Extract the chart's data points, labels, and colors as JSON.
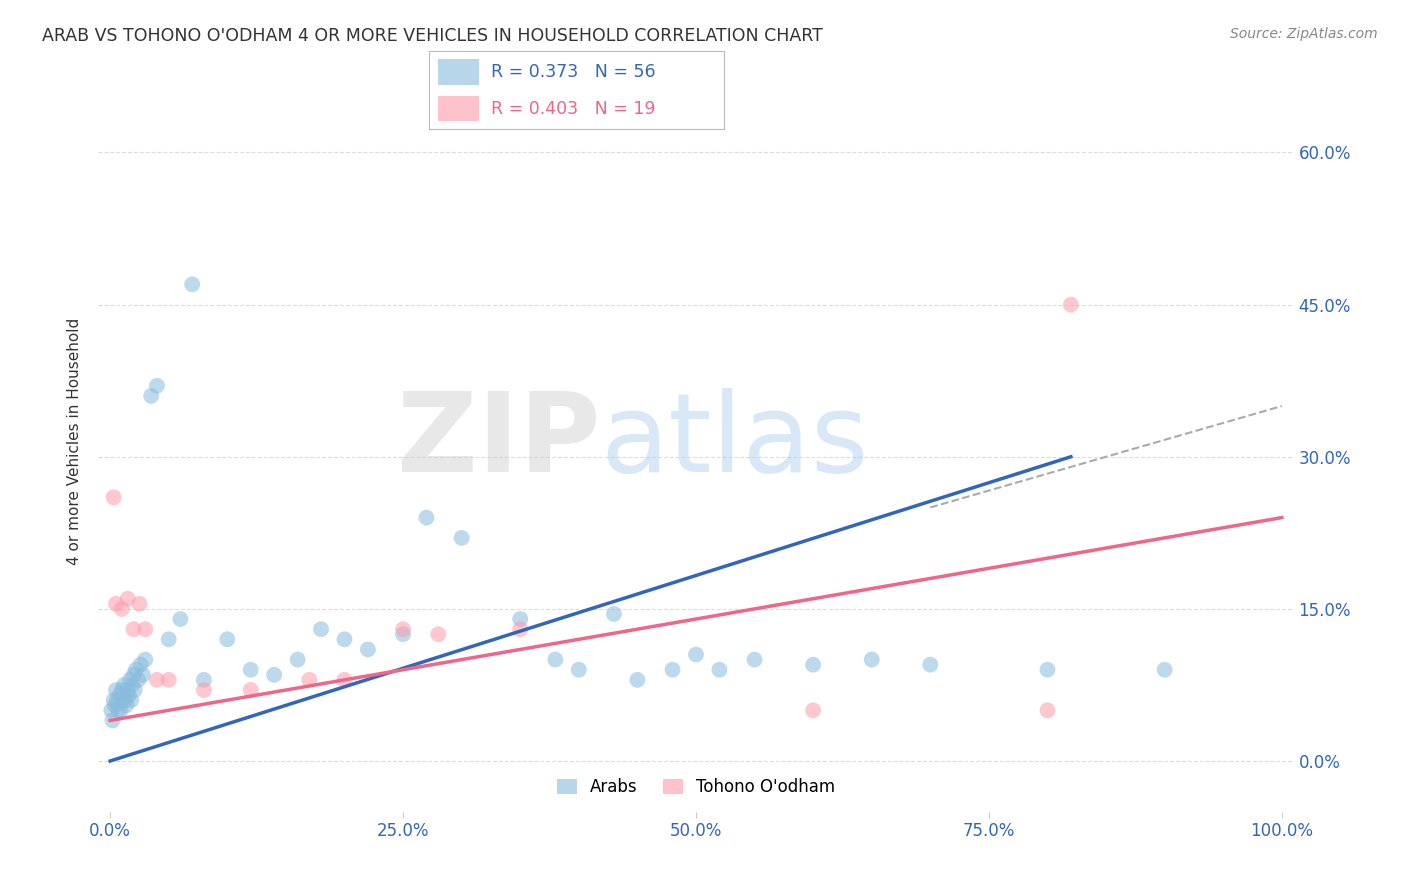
{
  "title": "ARAB VS TOHONO O'ODHAM 4 OR MORE VEHICLES IN HOUSEHOLD CORRELATION CHART",
  "source": "Source: ZipAtlas.com",
  "ylabel": "4 or more Vehicles in Household",
  "xlabel": "",
  "legend_arab": "Arabs",
  "legend_tohono": "Tohono O'odham",
  "R_arab": 0.373,
  "N_arab": 56,
  "R_tohono": 0.403,
  "N_tohono": 19,
  "arab_color": "#88BBDD",
  "tohono_color": "#FF99AA",
  "arab_line_color": "#3366BB",
  "tohono_line_color": "#EE6688",
  "background_color": "#FFFFFF",
  "grid_color": "#DDDDDD",
  "watermark_zip_color": "#CCCCCC",
  "watermark_atlas_color": "#AACCEE",
  "xlim_min": 0.0,
  "xlim_max": 100.0,
  "ylim_min": -5.0,
  "ylim_max": 68.0,
  "y_ticks": [
    0,
    15,
    30,
    45,
    60
  ],
  "x_ticks": [
    0,
    25,
    50,
    75,
    100
  ],
  "arab_x": [
    0.1,
    0.2,
    0.3,
    0.4,
    0.5,
    0.6,
    0.7,
    0.8,
    0.9,
    1.0,
    1.1,
    1.2,
    1.3,
    1.4,
    1.5,
    1.6,
    1.7,
    1.8,
    1.9,
    2.0,
    2.1,
    2.2,
    2.4,
    2.6,
    2.8,
    3.0,
    3.5,
    4.0,
    5.0,
    6.0,
    7.0,
    8.0,
    10.0,
    12.0,
    14.0,
    16.0,
    18.0,
    20.0,
    22.0,
    25.0,
    27.0,
    30.0,
    35.0,
    38.0,
    40.0,
    43.0,
    45.0,
    48.0,
    50.0,
    52.0,
    55.0,
    60.0,
    65.0,
    70.0,
    80.0,
    90.0
  ],
  "arab_y": [
    5.0,
    4.0,
    6.0,
    5.5,
    7.0,
    6.0,
    5.0,
    6.5,
    5.0,
    7.0,
    6.0,
    7.5,
    6.0,
    5.5,
    7.0,
    6.5,
    8.0,
    6.0,
    7.5,
    8.5,
    7.0,
    9.0,
    8.0,
    9.5,
    8.5,
    10.0,
    36.0,
    37.0,
    12.0,
    14.0,
    47.0,
    8.0,
    12.0,
    9.0,
    8.5,
    10.0,
    13.0,
    12.0,
    11.0,
    12.5,
    24.0,
    22.0,
    14.0,
    10.0,
    9.0,
    14.5,
    8.0,
    9.0,
    10.5,
    9.0,
    10.0,
    9.5,
    10.0,
    9.5,
    9.0,
    9.0
  ],
  "tohono_x": [
    0.3,
    0.5,
    1.0,
    1.5,
    2.0,
    2.5,
    3.0,
    4.0,
    5.0,
    8.0,
    12.0,
    17.0,
    20.0,
    25.0,
    28.0,
    35.0,
    60.0,
    80.0,
    82.0
  ],
  "tohono_y": [
    26.0,
    15.5,
    15.0,
    16.0,
    13.0,
    15.5,
    13.0,
    8.0,
    8.0,
    7.0,
    7.0,
    8.0,
    8.0,
    13.0,
    12.5,
    13.0,
    5.0,
    5.0,
    45.0
  ],
  "blue_line_x0": 0,
  "blue_line_y0": 0,
  "blue_line_x1": 82,
  "blue_line_y1": 30,
  "pink_line_x0": 0,
  "pink_line_y0": 4,
  "pink_line_x1": 100,
  "pink_line_y1": 24,
  "dash_line_x0": 70,
  "dash_line_y0": 25,
  "dash_line_x1": 100,
  "dash_line_y1": 35
}
